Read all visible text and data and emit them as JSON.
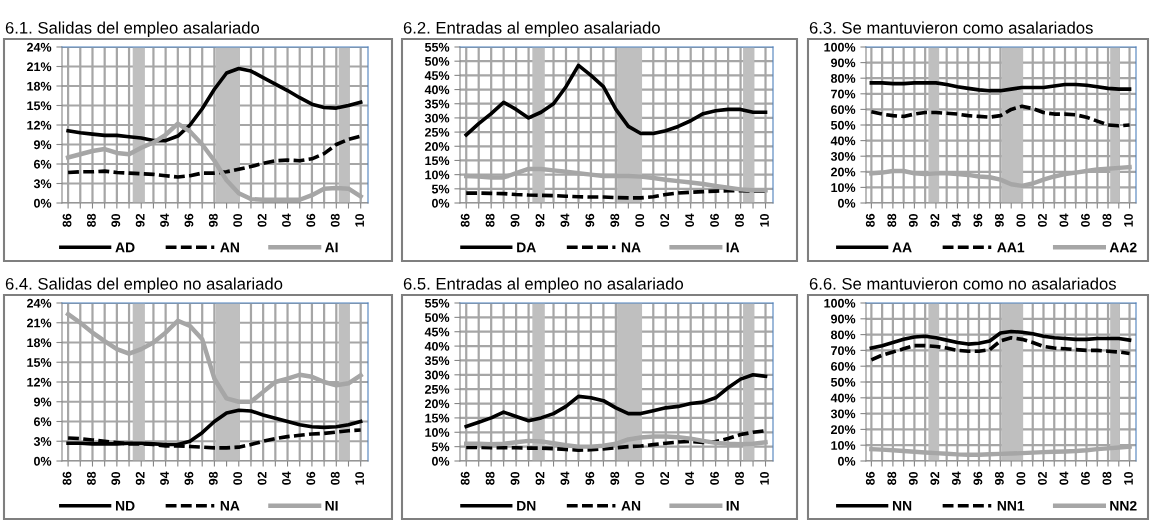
{
  "chart_data": [
    {
      "type": "line",
      "title": "6.1. Salidas del empleo asalariado",
      "x": [
        1986,
        1987,
        1988,
        1989,
        1990,
        1991,
        1992,
        1993,
        1994,
        1995,
        1996,
        1997,
        1998,
        1999,
        2000,
        2001,
        2002,
        2003,
        2004,
        2005,
        2006,
        2007,
        2008,
        2009,
        2010
      ],
      "series": [
        {
          "name": "AD",
          "color": "#000000",
          "line_style": "solid",
          "values": [
            11.1,
            10.8,
            10.6,
            10.4,
            10.4,
            10.2,
            10.0,
            9.6,
            9.6,
            10.3,
            12,
            14.5,
            17.5,
            20,
            20.7,
            20.3,
            19.3,
            18.3,
            17.3,
            16.2,
            15.2,
            14.7,
            14.6,
            15,
            15.5
          ]
        },
        {
          "name": "AN",
          "color": "#000000",
          "line_style": "dashed",
          "values": [
            4.7,
            4.8,
            4.8,
            4.9,
            4.7,
            4.6,
            4.5,
            4.4,
            4.2,
            4.0,
            4.2,
            4.6,
            4.6,
            4.8,
            5.2,
            5.6,
            6.1,
            6.5,
            6.6,
            6.5,
            6.8,
            7.6,
            9.0,
            9.8,
            10.3
          ]
        },
        {
          "name": "AI",
          "color": "#a6a6a6",
          "line_style": "solid",
          "values": [
            7.0,
            7.5,
            8.0,
            8.3,
            7.7,
            7.5,
            8.5,
            9.3,
            10.5,
            12.2,
            11,
            9,
            6.5,
            3.5,
            1.5,
            0.6,
            0.5,
            0.5,
            0.5,
            0.5,
            1.2,
            2.2,
            2.3,
            2.2,
            1.0
          ]
        }
      ],
      "xlim": [
        1985.5,
        2010.6
      ],
      "xticks": [
        {
          "value": 1986,
          "label": "86"
        },
        {
          "value": 1987,
          "label": null
        },
        {
          "value": 1988,
          "label": "88"
        },
        {
          "value": 1989,
          "label": null
        },
        {
          "value": 1990,
          "label": "90"
        },
        {
          "value": 1991,
          "label": null
        },
        {
          "value": 1992,
          "label": "92"
        },
        {
          "value": 1993,
          "label": null
        },
        {
          "value": 1994,
          "label": "94"
        },
        {
          "value": 1995,
          "label": null
        },
        {
          "value": 1996,
          "label": "96"
        },
        {
          "value": 1997,
          "label": null
        },
        {
          "value": 1998,
          "label": "98"
        },
        {
          "value": 1999,
          "label": null
        },
        {
          "value": 2000,
          "label": "00"
        },
        {
          "value": 2001,
          "label": null
        },
        {
          "value": 2002,
          "label": "02"
        },
        {
          "value": 2003,
          "label": null
        },
        {
          "value": 2004,
          "label": "04"
        },
        {
          "value": 2005,
          "label": null
        },
        {
          "value": 2006,
          "label": "06"
        },
        {
          "value": 2007,
          "label": null
        },
        {
          "value": 2008,
          "label": "08"
        },
        {
          "value": 2009,
          "label": null
        },
        {
          "value": 2010,
          "label": "10"
        }
      ],
      "ylim": [
        0,
        24
      ],
      "yticks": [
        {
          "value": 0,
          "label": "0%"
        },
        {
          "value": 3,
          "label": "3%"
        },
        {
          "value": 6,
          "label": "6%"
        },
        {
          "value": 9,
          "label": "9%"
        },
        {
          "value": 12,
          "label": "12%"
        },
        {
          "value": 15,
          "label": "15%"
        },
        {
          "value": 18,
          "label": "18%"
        },
        {
          "value": 21,
          "label": "21%"
        },
        {
          "value": 24,
          "label": "24%"
        }
      ],
      "bands": [
        {
          "axis": "x",
          "from": 1991.3,
          "to": 1992.3,
          "color": "#bfbfbf"
        },
        {
          "axis": "x",
          "from": 1998.1,
          "to": 2000.1,
          "color": "#bfbfbf"
        },
        {
          "axis": "x",
          "from": 2008.2,
          "to": 2009.1,
          "color": "#bfbfbf"
        }
      ],
      "grid": true,
      "legend": "bottom"
    },
    {
      "type": "line",
      "title": "6.2. Entradas al empleo asalariado",
      "x": [
        1986,
        1987,
        1988,
        1989,
        1990,
        1991,
        1992,
        1993,
        1994,
        1995,
        1996,
        1997,
        1998,
        1999,
        2000,
        2001,
        2002,
        2003,
        2004,
        2005,
        2006,
        2007,
        2008,
        2009,
        2010
      ],
      "series": [
        {
          "name": "DA",
          "color": "#000000",
          "line_style": "solid",
          "values": [
            24,
            28,
            31.5,
            35.5,
            33,
            30,
            32,
            35,
            41,
            48.5,
            45,
            41,
            33,
            27,
            24.5,
            24.5,
            25.5,
            27,
            29,
            31.5,
            32.5,
            33,
            33,
            32,
            32
          ]
        },
        {
          "name": "NA",
          "color": "#000000",
          "line_style": "dashed",
          "values": [
            3.5,
            3.5,
            3.4,
            3.3,
            3.0,
            2.8,
            2.7,
            2.6,
            2.4,
            2.2,
            2.1,
            2.1,
            1.9,
            1.8,
            1.8,
            2.2,
            3.0,
            3.5,
            3.8,
            4.0,
            4.2,
            4.3,
            4.3,
            4.2,
            4.2
          ]
        },
        {
          "name": "IA",
          "color": "#a6a6a6",
          "line_style": "solid",
          "values": [
            9.5,
            9.3,
            9.0,
            9.0,
            10.5,
            12,
            12,
            11.5,
            11,
            10.5,
            10,
            9.5,
            9.5,
            9.5,
            9.3,
            8.8,
            8.2,
            7.7,
            7.2,
            6.7,
            6.0,
            5.4,
            4.8,
            4.5,
            4.5
          ]
        }
      ],
      "xlim": [
        1985.5,
        2010.6
      ],
      "xticks": [
        {
          "value": 1986,
          "label": "86"
        },
        {
          "value": 1987,
          "label": null
        },
        {
          "value": 1988,
          "label": "88"
        },
        {
          "value": 1989,
          "label": null
        },
        {
          "value": 1990,
          "label": "90"
        },
        {
          "value": 1991,
          "label": null
        },
        {
          "value": 1992,
          "label": "92"
        },
        {
          "value": 1993,
          "label": null
        },
        {
          "value": 1994,
          "label": "94"
        },
        {
          "value": 1995,
          "label": null
        },
        {
          "value": 1996,
          "label": "96"
        },
        {
          "value": 1997,
          "label": null
        },
        {
          "value": 1998,
          "label": "98"
        },
        {
          "value": 1999,
          "label": null
        },
        {
          "value": 2000,
          "label": "00"
        },
        {
          "value": 2001,
          "label": null
        },
        {
          "value": 2002,
          "label": "02"
        },
        {
          "value": 2003,
          "label": null
        },
        {
          "value": 2004,
          "label": "04"
        },
        {
          "value": 2005,
          "label": null
        },
        {
          "value": 2006,
          "label": "06"
        },
        {
          "value": 2007,
          "label": null
        },
        {
          "value": 2008,
          "label": "08"
        },
        {
          "value": 2009,
          "label": null
        },
        {
          "value": 2010,
          "label": "10"
        }
      ],
      "ylim": [
        0,
        55
      ],
      "yticks": [
        {
          "value": 0,
          "label": "0%"
        },
        {
          "value": 5,
          "label": "5%"
        },
        {
          "value": 10,
          "label": "10%"
        },
        {
          "value": 15,
          "label": "15%"
        },
        {
          "value": 20,
          "label": "20%"
        },
        {
          "value": 25,
          "label": "25%"
        },
        {
          "value": 30,
          "label": "30%"
        },
        {
          "value": 35,
          "label": "35%"
        },
        {
          "value": 40,
          "label": "40%"
        },
        {
          "value": 45,
          "label": "45%"
        },
        {
          "value": 50,
          "label": "50%"
        },
        {
          "value": 55,
          "label": "55%"
        }
      ],
      "bands": [
        {
          "axis": "x",
          "from": 1991.3,
          "to": 1992.3,
          "color": "#bfbfbf"
        },
        {
          "axis": "x",
          "from": 1998.1,
          "to": 2000.1,
          "color": "#bfbfbf"
        },
        {
          "axis": "x",
          "from": 2008.2,
          "to": 2009.1,
          "color": "#bfbfbf"
        }
      ],
      "grid": true,
      "legend": "bottom"
    },
    {
      "type": "line",
      "title": "6.3. Se mantuvieron como asalariados",
      "x": [
        1986,
        1987,
        1988,
        1989,
        1990,
        1991,
        1992,
        1993,
        1994,
        1995,
        1996,
        1997,
        1998,
        1999,
        2000,
        2001,
        2002,
        2003,
        2004,
        2005,
        2006,
        2007,
        2008,
        2009,
        2010
      ],
      "series": [
        {
          "name": "AA",
          "color": "#000000",
          "line_style": "solid",
          "values": [
            77,
            77,
            76.5,
            76.5,
            77,
            77,
            77,
            76,
            74.5,
            73.5,
            72.5,
            72,
            72,
            73,
            74,
            74,
            74,
            75,
            76,
            76,
            75.5,
            74.5,
            73.5,
            73,
            73
          ]
        },
        {
          "name": "AA1",
          "color": "#000000",
          "line_style": "dashed",
          "values": [
            58.5,
            57,
            56,
            55.5,
            57,
            58,
            58,
            57.5,
            57,
            56,
            55.5,
            55,
            56,
            60,
            62,
            60.5,
            58,
            57,
            57,
            56.5,
            55,
            52.5,
            50,
            49.5,
            50
          ]
        },
        {
          "name": "AA2",
          "color": "#a6a6a6",
          "line_style": "solid",
          "values": [
            19,
            19.5,
            20.5,
            20.5,
            19,
            18.5,
            19,
            19,
            18.5,
            18,
            17,
            16.5,
            15,
            12,
            11,
            12.5,
            15,
            17,
            18.5,
            19.5,
            20.5,
            21.5,
            22,
            22.5,
            23
          ]
        }
      ],
      "xlim": [
        1985.5,
        2010.6
      ],
      "xticks": [
        {
          "value": 1986,
          "label": "86"
        },
        {
          "value": 1987,
          "label": null
        },
        {
          "value": 1988,
          "label": "88"
        },
        {
          "value": 1989,
          "label": null
        },
        {
          "value": 1990,
          "label": "90"
        },
        {
          "value": 1991,
          "label": null
        },
        {
          "value": 1992,
          "label": "92"
        },
        {
          "value": 1993,
          "label": null
        },
        {
          "value": 1994,
          "label": "94"
        },
        {
          "value": 1995,
          "label": null
        },
        {
          "value": 1996,
          "label": "96"
        },
        {
          "value": 1997,
          "label": null
        },
        {
          "value": 1998,
          "label": "98"
        },
        {
          "value": 1999,
          "label": null
        },
        {
          "value": 2000,
          "label": "00"
        },
        {
          "value": 2001,
          "label": null
        },
        {
          "value": 2002,
          "label": "02"
        },
        {
          "value": 2003,
          "label": null
        },
        {
          "value": 2004,
          "label": "04"
        },
        {
          "value": 2005,
          "label": null
        },
        {
          "value": 2006,
          "label": "06"
        },
        {
          "value": 2007,
          "label": null
        },
        {
          "value": 2008,
          "label": "08"
        },
        {
          "value": 2009,
          "label": null
        },
        {
          "value": 2010,
          "label": "10"
        }
      ],
      "ylim": [
        0,
        100
      ],
      "yticks": [
        {
          "value": 0,
          "label": "0%"
        },
        {
          "value": 10,
          "label": "10%"
        },
        {
          "value": 20,
          "label": "20%"
        },
        {
          "value": 30,
          "label": "30%"
        },
        {
          "value": 40,
          "label": "40%"
        },
        {
          "value": 50,
          "label": "50%"
        },
        {
          "value": 60,
          "label": "60%"
        },
        {
          "value": 70,
          "label": "70%"
        },
        {
          "value": 80,
          "label": "80%"
        },
        {
          "value": 90,
          "label": "90%"
        },
        {
          "value": 100,
          "label": "100%"
        }
      ],
      "bands": [
        {
          "axis": "x",
          "from": 1991.3,
          "to": 1992.3,
          "color": "#bfbfbf"
        },
        {
          "axis": "x",
          "from": 1998.1,
          "to": 2000.1,
          "color": "#bfbfbf"
        },
        {
          "axis": "x",
          "from": 2008.2,
          "to": 2009.1,
          "color": "#bfbfbf"
        }
      ],
      "grid": true,
      "legend": "bottom"
    },
    {
      "type": "line",
      "title": "6.4. Salidas del empleo no asalariado",
      "x": [
        1986,
        1987,
        1988,
        1989,
        1990,
        1991,
        1992,
        1993,
        1994,
        1995,
        1996,
        1997,
        1998,
        1999,
        2000,
        2001,
        2002,
        2003,
        2004,
        2005,
        2006,
        2007,
        2008,
        2009,
        2010
      ],
      "series": [
        {
          "name": "ND",
          "color": "#000000",
          "line_style": "solid",
          "values": [
            2.7,
            2.7,
            2.6,
            2.6,
            2.6,
            2.7,
            2.7,
            2.6,
            2.5,
            2.5,
            3.0,
            4.3,
            6.0,
            7.3,
            7.7,
            7.6,
            7.0,
            6.5,
            6.0,
            5.5,
            5.2,
            5.1,
            5.2,
            5.5,
            6.0
          ]
        },
        {
          "name": "NA",
          "color": "#000000",
          "line_style": "dashed",
          "values": [
            3.5,
            3.4,
            3.2,
            3.0,
            2.8,
            2.6,
            2.6,
            2.5,
            2.3,
            2.3,
            2.2,
            2.1,
            2.0,
            2.0,
            2.1,
            2.5,
            3.0,
            3.4,
            3.7,
            3.9,
            4.1,
            4.2,
            4.4,
            4.6,
            4.7
          ]
        },
        {
          "name": "NI",
          "color": "#a6a6a6",
          "line_style": "solid",
          "values": [
            22.3,
            21,
            19.5,
            18.2,
            17,
            16.3,
            17,
            18,
            19.5,
            21.3,
            20.5,
            18.5,
            12.5,
            9.5,
            9,
            9,
            10.5,
            12,
            12.5,
            13.1,
            12.8,
            12,
            11.5,
            11.8,
            13
          ]
        }
      ],
      "xlim": [
        1985.5,
        2010.6
      ],
      "xticks": [
        {
          "value": 1986,
          "label": "86"
        },
        {
          "value": 1987,
          "label": null
        },
        {
          "value": 1988,
          "label": "88"
        },
        {
          "value": 1989,
          "label": null
        },
        {
          "value": 1990,
          "label": "90"
        },
        {
          "value": 1991,
          "label": null
        },
        {
          "value": 1992,
          "label": "92"
        },
        {
          "value": 1993,
          "label": null
        },
        {
          "value": 1994,
          "label": "94"
        },
        {
          "value": 1995,
          "label": null
        },
        {
          "value": 1996,
          "label": "96"
        },
        {
          "value": 1997,
          "label": null
        },
        {
          "value": 1998,
          "label": "98"
        },
        {
          "value": 1999,
          "label": null
        },
        {
          "value": 2000,
          "label": "00"
        },
        {
          "value": 2001,
          "label": null
        },
        {
          "value": 2002,
          "label": "02"
        },
        {
          "value": 2003,
          "label": null
        },
        {
          "value": 2004,
          "label": "04"
        },
        {
          "value": 2005,
          "label": null
        },
        {
          "value": 2006,
          "label": "06"
        },
        {
          "value": 2007,
          "label": null
        },
        {
          "value": 2008,
          "label": "08"
        },
        {
          "value": 2009,
          "label": null
        },
        {
          "value": 2010,
          "label": "10"
        }
      ],
      "ylim": [
        0,
        24
      ],
      "yticks": [
        {
          "value": 0,
          "label": "0%"
        },
        {
          "value": 3,
          "label": "3%"
        },
        {
          "value": 6,
          "label": "6%"
        },
        {
          "value": 9,
          "label": "9%"
        },
        {
          "value": 12,
          "label": "12%"
        },
        {
          "value": 15,
          "label": "15%"
        },
        {
          "value": 18,
          "label": "18%"
        },
        {
          "value": 21,
          "label": "21%"
        },
        {
          "value": 24,
          "label": "24%"
        }
      ],
      "bands": [
        {
          "axis": "x",
          "from": 1991.3,
          "to": 1992.3,
          "color": "#bfbfbf"
        },
        {
          "axis": "x",
          "from": 1998.1,
          "to": 2000.1,
          "color": "#bfbfbf"
        },
        {
          "axis": "x",
          "from": 2008.2,
          "to": 2009.1,
          "color": "#bfbfbf"
        }
      ],
      "grid": true,
      "legend": "bottom"
    },
    {
      "type": "line",
      "title": "6.5. Entradas al empleo no asalariado",
      "x": [
        1986,
        1987,
        1988,
        1989,
        1990,
        1991,
        1992,
        1993,
        1994,
        1995,
        1996,
        1997,
        1998,
        1999,
        2000,
        2001,
        2002,
        2003,
        2004,
        2005,
        2006,
        2007,
        2008,
        2009,
        2010
      ],
      "series": [
        {
          "name": "DN",
          "color": "#000000",
          "line_style": "solid",
          "values": [
            12,
            13.5,
            15,
            17,
            15.5,
            14,
            15,
            16.5,
            19,
            22.5,
            22,
            21,
            18.5,
            16.5,
            16.5,
            17.5,
            18.5,
            19,
            20,
            20.5,
            22,
            25.5,
            28.5,
            30,
            29.5
          ]
        },
        {
          "name": "AN",
          "color": "#000000",
          "line_style": "dashed",
          "values": [
            4.7,
            4.7,
            4.6,
            4.6,
            4.6,
            4.5,
            4.5,
            4.3,
            4.0,
            3.8,
            3.9,
            4.2,
            4.6,
            5.0,
            5.2,
            5.7,
            6.2,
            6.6,
            6.8,
            6.5,
            6.8,
            7.8,
            9.2,
            10,
            10.5
          ]
        },
        {
          "name": "IN",
          "color": "#a6a6a6",
          "line_style": "solid",
          "values": [
            6,
            6,
            5.8,
            6.0,
            6.5,
            7,
            6.8,
            6.2,
            5.5,
            5,
            5,
            5.3,
            6,
            7.5,
            8.2,
            8.5,
            8.5,
            8.3,
            7.8,
            7,
            6.3,
            6,
            5.8,
            6,
            6.5
          ]
        }
      ],
      "xlim": [
        1985.5,
        2010.6
      ],
      "xticks": [
        {
          "value": 1986,
          "label": "86"
        },
        {
          "value": 1987,
          "label": null
        },
        {
          "value": 1988,
          "label": "88"
        },
        {
          "value": 1989,
          "label": null
        },
        {
          "value": 1990,
          "label": "90"
        },
        {
          "value": 1991,
          "label": null
        },
        {
          "value": 1992,
          "label": "92"
        },
        {
          "value": 1993,
          "label": null
        },
        {
          "value": 1994,
          "label": "94"
        },
        {
          "value": 1995,
          "label": null
        },
        {
          "value": 1996,
          "label": "96"
        },
        {
          "value": 1997,
          "label": null
        },
        {
          "value": 1998,
          "label": "98"
        },
        {
          "value": 1999,
          "label": null
        },
        {
          "value": 2000,
          "label": "00"
        },
        {
          "value": 2001,
          "label": null
        },
        {
          "value": 2002,
          "label": "02"
        },
        {
          "value": 2003,
          "label": null
        },
        {
          "value": 2004,
          "label": "04"
        },
        {
          "value": 2005,
          "label": null
        },
        {
          "value": 2006,
          "label": "06"
        },
        {
          "value": 2007,
          "label": null
        },
        {
          "value": 2008,
          "label": "08"
        },
        {
          "value": 2009,
          "label": null
        },
        {
          "value": 2010,
          "label": "10"
        }
      ],
      "ylim": [
        0,
        55
      ],
      "yticks": [
        {
          "value": 0,
          "label": "0%"
        },
        {
          "value": 5,
          "label": "5%"
        },
        {
          "value": 10,
          "label": "10%"
        },
        {
          "value": 15,
          "label": "15%"
        },
        {
          "value": 20,
          "label": "20%"
        },
        {
          "value": 25,
          "label": "25%"
        },
        {
          "value": 30,
          "label": "30%"
        },
        {
          "value": 35,
          "label": "35%"
        },
        {
          "value": 40,
          "label": "40%"
        },
        {
          "value": 45,
          "label": "45%"
        },
        {
          "value": 50,
          "label": "50%"
        },
        {
          "value": 55,
          "label": "55%"
        }
      ],
      "bands": [
        {
          "axis": "x",
          "from": 1991.3,
          "to": 1992.3,
          "color": "#bfbfbf"
        },
        {
          "axis": "x",
          "from": 1998.1,
          "to": 2000.1,
          "color": "#bfbfbf"
        },
        {
          "axis": "x",
          "from": 2008.2,
          "to": 2009.1,
          "color": "#bfbfbf"
        }
      ],
      "grid": true,
      "legend": "bottom"
    },
    {
      "type": "line",
      "title": "6.6. Se mantuvieron como no asalariados",
      "x": [
        1986,
        1987,
        1988,
        1989,
        1990,
        1991,
        1992,
        1993,
        1994,
        1995,
        1996,
        1997,
        1998,
        1999,
        2000,
        2001,
        2002,
        2003,
        2004,
        2005,
        2006,
        2007,
        2008,
        2009,
        2010
      ],
      "series": [
        {
          "name": "NN",
          "color": "#000000",
          "line_style": "solid",
          "values": [
            71.5,
            73,
            75,
            77,
            78.5,
            79,
            78,
            76.5,
            75,
            74,
            74.5,
            76,
            81,
            82,
            81.5,
            80.5,
            79,
            78,
            77.5,
            77,
            77,
            77.5,
            77.5,
            77.5,
            76.5
          ]
        },
        {
          "name": "NN1",
          "color": "#000000",
          "line_style": "dashed",
          "values": [
            64,
            67,
            69,
            71,
            73,
            73,
            72.5,
            71.5,
            70,
            69.5,
            69.5,
            70.5,
            76,
            78,
            77,
            75,
            72.5,
            71.5,
            71,
            70.5,
            70,
            70,
            69.5,
            69,
            68
          ]
        },
        {
          "name": "NN2",
          "color": "#a6a6a6",
          "line_style": "solid",
          "values": [
            7.5,
            7.2,
            6.8,
            6.3,
            5.8,
            5.4,
            5,
            4.6,
            4.2,
            4.0,
            4.0,
            4.3,
            4.5,
            4.7,
            5,
            5.3,
            5.6,
            5.8,
            6,
            6.3,
            6.8,
            7.5,
            8,
            8.5,
            9
          ]
        }
      ],
      "xlim": [
        1985.5,
        2010.6
      ],
      "xticks": [
        {
          "value": 1986,
          "label": "86"
        },
        {
          "value": 1987,
          "label": null
        },
        {
          "value": 1988,
          "label": "88"
        },
        {
          "value": 1989,
          "label": null
        },
        {
          "value": 1990,
          "label": "90"
        },
        {
          "value": 1991,
          "label": null
        },
        {
          "value": 1992,
          "label": "92"
        },
        {
          "value": 1993,
          "label": null
        },
        {
          "value": 1994,
          "label": "94"
        },
        {
          "value": 1995,
          "label": null
        },
        {
          "value": 1996,
          "label": "96"
        },
        {
          "value": 1997,
          "label": null
        },
        {
          "value": 1998,
          "label": "98"
        },
        {
          "value": 1999,
          "label": null
        },
        {
          "value": 2000,
          "label": "00"
        },
        {
          "value": 2001,
          "label": null
        },
        {
          "value": 2002,
          "label": "02"
        },
        {
          "value": 2003,
          "label": null
        },
        {
          "value": 2004,
          "label": "04"
        },
        {
          "value": 2005,
          "label": null
        },
        {
          "value": 2006,
          "label": "06"
        },
        {
          "value": 2007,
          "label": null
        },
        {
          "value": 2008,
          "label": "08"
        },
        {
          "value": 2009,
          "label": null
        },
        {
          "value": 2010,
          "label": "10"
        }
      ],
      "ylim": [
        0,
        100
      ],
      "yticks": [
        {
          "value": 0,
          "label": "0%"
        },
        {
          "value": 10,
          "label": "10%"
        },
        {
          "value": 20,
          "label": "20%"
        },
        {
          "value": 30,
          "label": "30%"
        },
        {
          "value": 40,
          "label": "40%"
        },
        {
          "value": 50,
          "label": "50%"
        },
        {
          "value": 60,
          "label": "60%"
        },
        {
          "value": 70,
          "label": "70%"
        },
        {
          "value": 80,
          "label": "80%"
        },
        {
          "value": 90,
          "label": "90%"
        },
        {
          "value": 100,
          "label": "100%"
        }
      ],
      "bands": [
        {
          "axis": "x",
          "from": 1991.3,
          "to": 1992.3,
          "color": "#bfbfbf"
        },
        {
          "axis": "x",
          "from": 1998.1,
          "to": 2000.1,
          "color": "#bfbfbf"
        },
        {
          "axis": "x",
          "from": 2008.2,
          "to": 2009.1,
          "color": "#bfbfbf"
        }
      ],
      "grid": true,
      "legend": "bottom"
    }
  ]
}
